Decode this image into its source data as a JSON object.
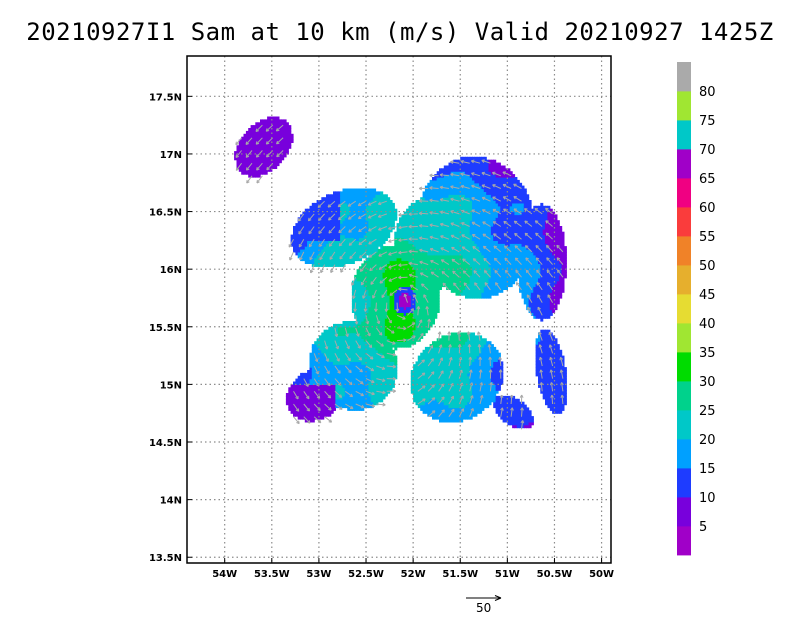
{
  "title": "20210927I1 Sam at 10 km (m/s) Valid 20210927  1425Z",
  "chart_data": {
    "type": "heatmap",
    "title": "20210927I1 Sam at 10 km (m/s) Valid 20210927  1425Z",
    "xlabel": "",
    "ylabel": "",
    "units": "m/s",
    "xlim": [
      -54.4,
      -49.9
    ],
    "ylim": [
      13.45,
      17.85
    ],
    "x_ticks": [
      -54,
      -53.5,
      -53,
      -52.5,
      -52,
      -51.5,
      -51,
      -50.5,
      -50
    ],
    "x_tick_labels": [
      "54W",
      "53.5W",
      "53W",
      "52.5W",
      "52W",
      "51.5W",
      "51W",
      "50.5W",
      "50W"
    ],
    "y_ticks": [
      13.5,
      14,
      14.5,
      15,
      15.5,
      16,
      16.5,
      17,
      17.5
    ],
    "y_tick_labels": [
      "13.5N",
      "14N",
      "14.5N",
      "15N",
      "15.5N",
      "16N",
      "16.5N",
      "17N",
      "17.5N"
    ],
    "grid": true,
    "center": {
      "lon": -52.1,
      "lat": 15.72
    },
    "colorbar": {
      "labels": [
        "5",
        "10",
        "15",
        "20",
        "25",
        "30",
        "35",
        "40",
        "45",
        "50",
        "55",
        "60",
        "65",
        "70",
        "75",
        "80"
      ],
      "colors": [
        "#a000c8",
        "#7800dc",
        "#1e3cff",
        "#00a0ff",
        "#00c8c8",
        "#00d28c",
        "#00dc00",
        "#a0e632",
        "#e6dc32",
        "#e6af2d",
        "#f08228",
        "#fa3c3c",
        "#f00082",
        "#a000c8",
        "#00c8c8",
        "#a0e632",
        "#aaaaaa"
      ]
    },
    "reference_vector": {
      "label": "50",
      "value": 50
    }
  }
}
